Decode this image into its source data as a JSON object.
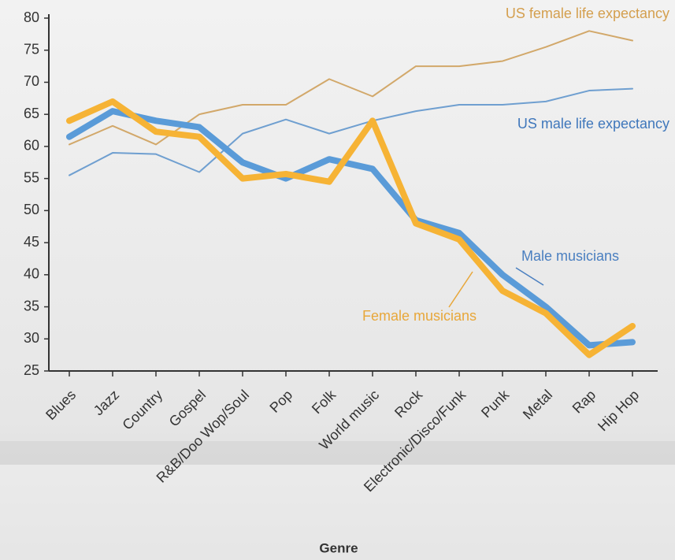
{
  "chart_data": {
    "type": "line",
    "x_label": "Genre",
    "categories": [
      "Blues",
      "Jazz",
      "Country",
      "Gospel",
      "R&B/Doo Wop/Soul",
      "Pop",
      "Folk",
      "World music",
      "Rock",
      "Electronic/Disco/Funk",
      "Punk",
      "Metal",
      "Rap",
      "Hip Hop"
    ],
    "series": [
      {
        "name": "US female life expectancy",
        "color": "#d2a86a",
        "line_width": 2,
        "values": [
          60.3,
          63.2,
          60.3,
          65,
          66.5,
          66.5,
          70.5,
          67.8,
          72.5,
          72.5,
          73.3,
          75.5,
          78,
          76.5
        ]
      },
      {
        "name": "US male life expectancy",
        "color": "#6f9fd0",
        "line_width": 2,
        "values": [
          55.5,
          59,
          58.8,
          56,
          62,
          64.2,
          62,
          64,
          65.5,
          66.5,
          66.5,
          67,
          68.7,
          69
        ]
      },
      {
        "name": "Male musicians",
        "color": "#5a9bd8",
        "line_width": 8,
        "values": [
          61.5,
          65.5,
          64,
          63,
          57.5,
          55,
          58,
          56.5,
          48.5,
          46.5,
          40,
          35,
          29,
          29.5
        ]
      },
      {
        "name": "Female musicians",
        "color": "#f6b335",
        "line_width": 8,
        "values": [
          64,
          67,
          62.3,
          61.5,
          55,
          55.7,
          54.5,
          64,
          48,
          45.5,
          37.5,
          34,
          27.5,
          32
        ]
      }
    ],
    "ylim": [
      25,
      80
    ],
    "yticks": [
      25,
      30,
      35,
      40,
      45,
      50,
      55,
      60,
      65,
      70,
      75,
      80
    ],
    "grid": false
  }
}
